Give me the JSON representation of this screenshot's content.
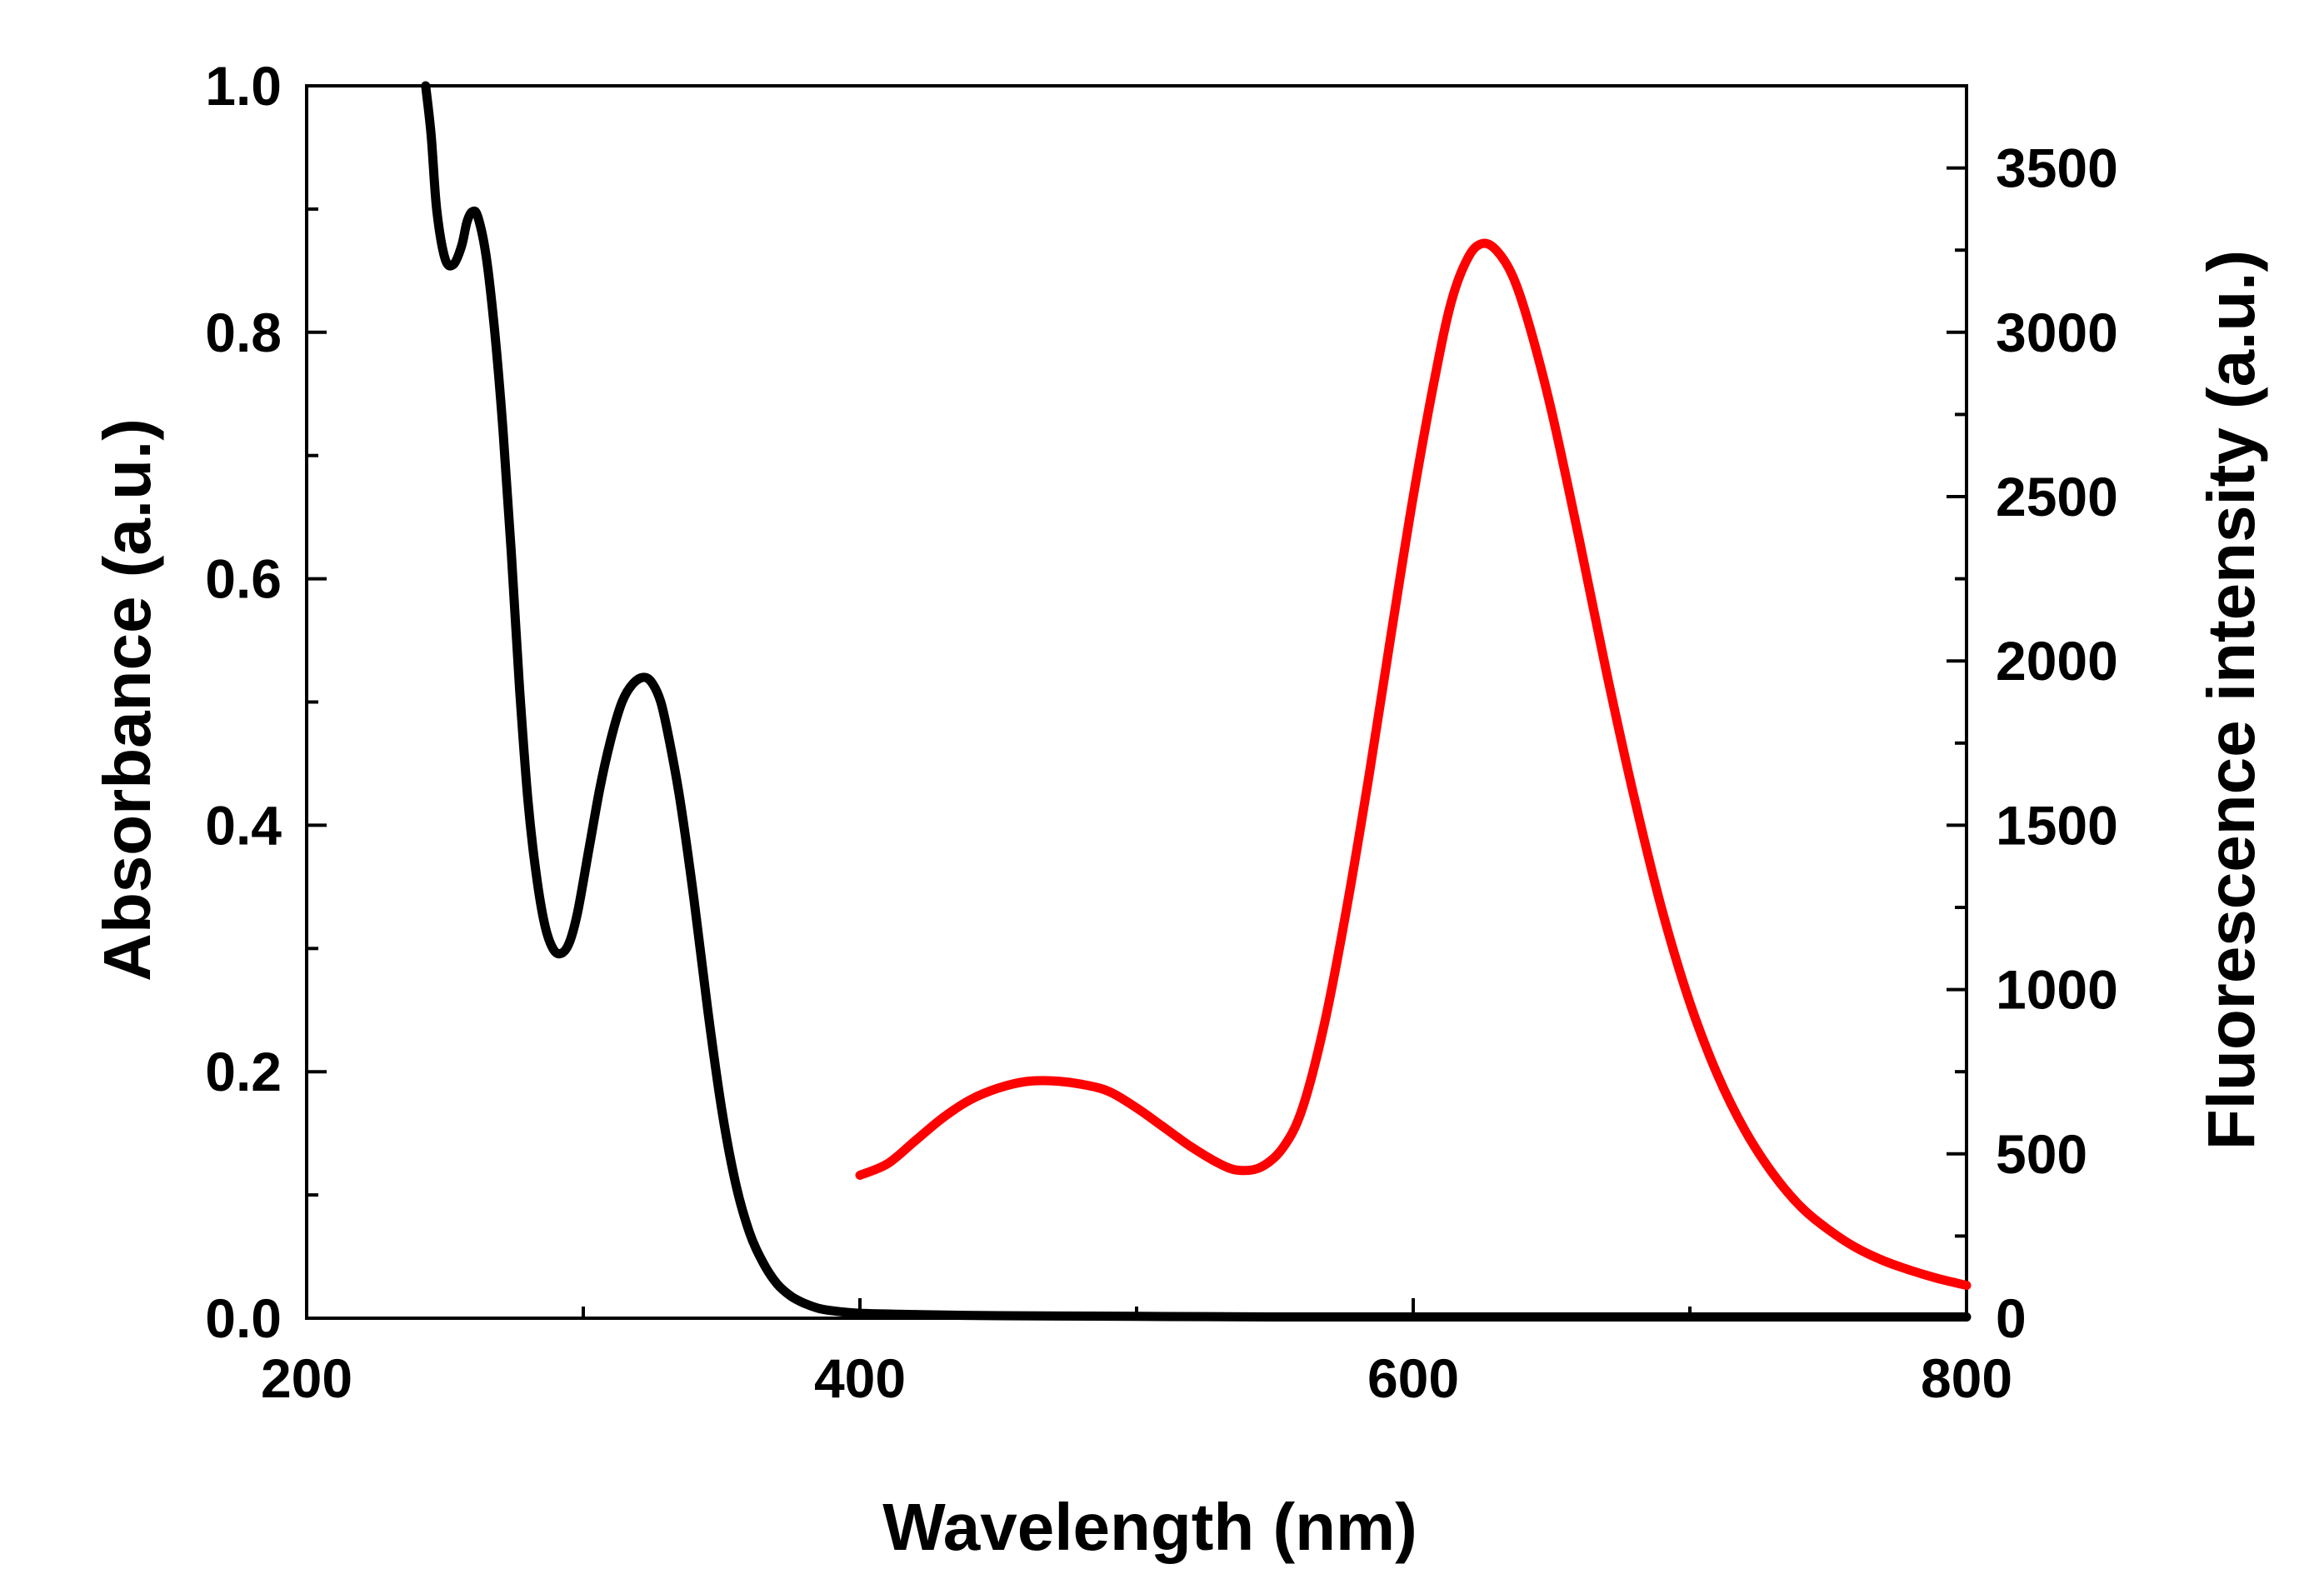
{
  "chart_data": {
    "type": "line",
    "title": "",
    "xlabel": "Wavelength (nm)",
    "ylabel_left": "Absorbance (a.u.)",
    "ylabel_right": "Fluorescence intensity (a.u.)",
    "xlim": [
      200,
      800
    ],
    "ylim_left": [
      0,
      1.0
    ],
    "ylim_right": [
      0,
      3750
    ],
    "x_ticks": [
      200,
      400,
      600,
      800
    ],
    "x_tick_labels": [
      "200",
      "400",
      "600",
      "800"
    ],
    "y_left_ticks": [
      0.0,
      0.2,
      0.4,
      0.6,
      0.8,
      1.0
    ],
    "y_left_tick_labels": [
      "0.0",
      "0.2",
      "0.4",
      "0.6",
      "0.8",
      "1.0"
    ],
    "y_right_ticks": [
      0,
      500,
      1000,
      1500,
      2000,
      2500,
      3000,
      3500
    ],
    "y_right_tick_labels": [
      "0",
      "500",
      "1000",
      "1500",
      "2000",
      "2500",
      "3000",
      "3500"
    ],
    "grid": false,
    "series": [
      {
        "name": "Absorbance",
        "axis": "left",
        "color": "#000000",
        "points": [
          [
            243,
            1.0
          ],
          [
            245,
            0.96
          ],
          [
            247,
            0.9
          ],
          [
            250,
            0.86
          ],
          [
            253,
            0.855
          ],
          [
            256,
            0.87
          ],
          [
            258,
            0.89
          ],
          [
            260,
            0.898
          ],
          [
            262,
            0.893
          ],
          [
            265,
            0.86
          ],
          [
            268,
            0.8
          ],
          [
            271,
            0.72
          ],
          [
            274,
            0.62
          ],
          [
            277,
            0.51
          ],
          [
            280,
            0.42
          ],
          [
            283,
            0.36
          ],
          [
            286,
            0.32
          ],
          [
            289,
            0.3
          ],
          [
            292,
            0.296
          ],
          [
            295,
            0.305
          ],
          [
            298,
            0.33
          ],
          [
            302,
            0.38
          ],
          [
            306,
            0.43
          ],
          [
            310,
            0.47
          ],
          [
            314,
            0.5
          ],
          [
            318,
            0.515
          ],
          [
            322,
            0.52
          ],
          [
            325,
            0.515
          ],
          [
            328,
            0.5
          ],
          [
            331,
            0.47
          ],
          [
            335,
            0.42
          ],
          [
            340,
            0.34
          ],
          [
            345,
            0.25
          ],
          [
            350,
            0.17
          ],
          [
            355,
            0.11
          ],
          [
            360,
            0.07
          ],
          [
            365,
            0.045
          ],
          [
            370,
            0.028
          ],
          [
            375,
            0.018
          ],
          [
            380,
            0.012
          ],
          [
            385,
            0.008
          ],
          [
            390,
            0.006
          ],
          [
            400,
            0.004
          ],
          [
            420,
            0.003
          ],
          [
            450,
            0.002
          ],
          [
            500,
            0.0015
          ],
          [
            550,
            0.001
          ],
          [
            600,
            0.001
          ],
          [
            650,
            0.001
          ],
          [
            700,
            0.001
          ],
          [
            750,
            0.001
          ],
          [
            800,
            0.001
          ]
        ]
      },
      {
        "name": "Fluorescence",
        "axis": "right",
        "color": "#ff0000",
        "points": [
          [
            400,
            435
          ],
          [
            410,
            470
          ],
          [
            420,
            540
          ],
          [
            430,
            610
          ],
          [
            440,
            665
          ],
          [
            450,
            700
          ],
          [
            460,
            720
          ],
          [
            470,
            722
          ],
          [
            480,
            712
          ],
          [
            490,
            690
          ],
          [
            500,
            640
          ],
          [
            510,
            580
          ],
          [
            520,
            520
          ],
          [
            530,
            470
          ],
          [
            537,
            450
          ],
          [
            545,
            460
          ],
          [
            553,
            520
          ],
          [
            560,
            640
          ],
          [
            568,
            900
          ],
          [
            576,
            1250
          ],
          [
            584,
            1650
          ],
          [
            592,
            2080
          ],
          [
            600,
            2500
          ],
          [
            608,
            2870
          ],
          [
            614,
            3100
          ],
          [
            620,
            3230
          ],
          [
            625,
            3270
          ],
          [
            630,
            3250
          ],
          [
            636,
            3170
          ],
          [
            642,
            3020
          ],
          [
            650,
            2760
          ],
          [
            660,
            2370
          ],
          [
            670,
            1960
          ],
          [
            680,
            1580
          ],
          [
            690,
            1240
          ],
          [
            700,
            960
          ],
          [
            710,
            740
          ],
          [
            720,
            570
          ],
          [
            730,
            440
          ],
          [
            740,
            340
          ],
          [
            750,
            270
          ],
          [
            760,
            215
          ],
          [
            770,
            175
          ],
          [
            780,
            145
          ],
          [
            790,
            120
          ],
          [
            800,
            100
          ]
        ]
      }
    ]
  }
}
